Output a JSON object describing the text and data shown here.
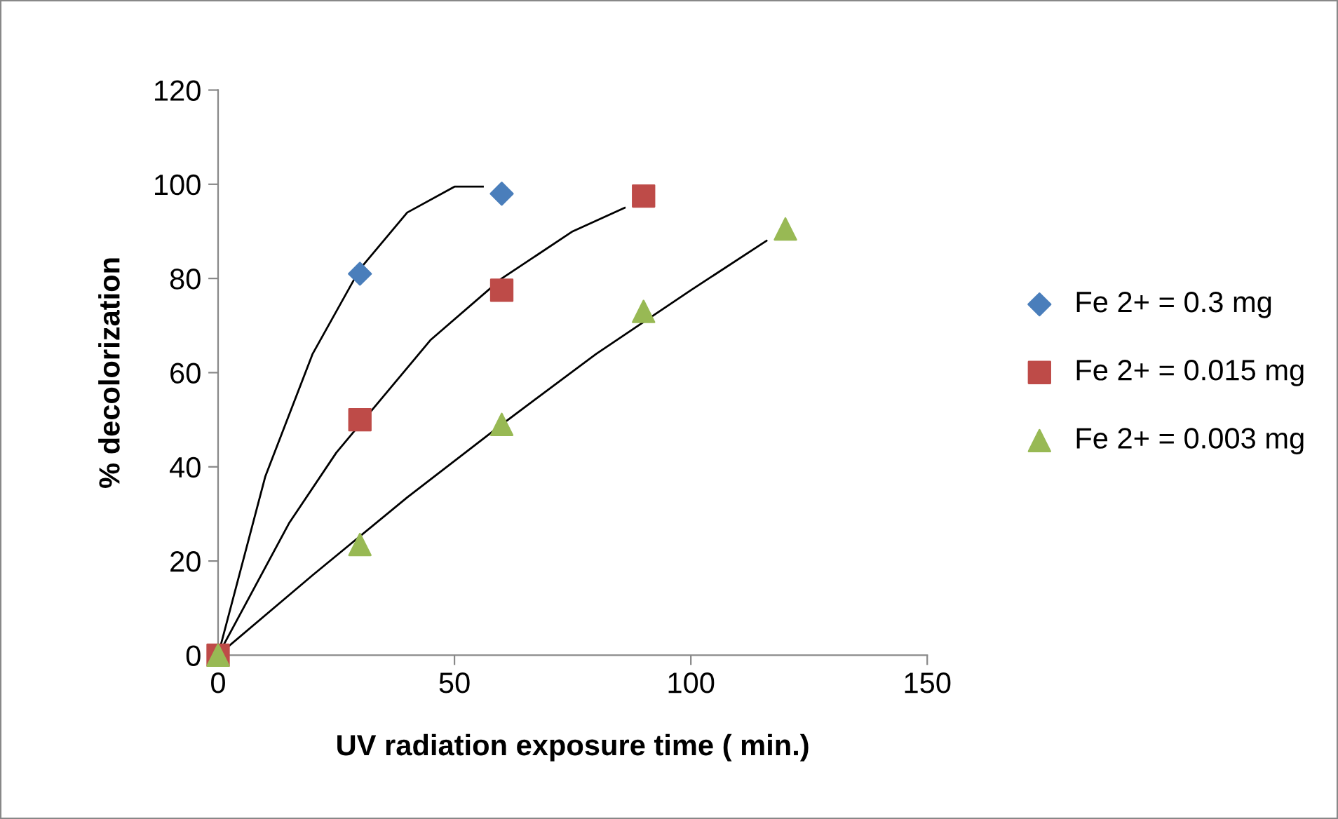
{
  "chart_data": {
    "type": "scatter",
    "xlabel": "UV radiation exposure time ( min.)",
    "ylabel": "% decolorization",
    "xlim": [
      0,
      150
    ],
    "xticks": [
      0,
      50,
      100,
      150
    ],
    "ylim": [
      0,
      120
    ],
    "yticks": [
      0,
      20,
      40,
      60,
      80,
      100,
      120
    ],
    "grid": false,
    "legend": "right",
    "series": [
      {
        "type": "line",
        "color": "#000000",
        "x": [
          0,
          10,
          20,
          30,
          40,
          50,
          56
        ],
        "values": [
          0,
          38,
          64,
          82,
          94,
          99.5,
          99.5
        ]
      },
      {
        "type": "line",
        "color": "#000000",
        "x": [
          0,
          15,
          25,
          45,
          60,
          75,
          86
        ],
        "values": [
          0,
          28,
          43,
          67,
          80,
          90,
          95
        ]
      },
      {
        "type": "line",
        "color": "#000000",
        "x": [
          0,
          20,
          40,
          60,
          80,
          100,
          116
        ],
        "values": [
          0,
          17,
          33.5,
          49,
          64,
          77.5,
          88
        ]
      },
      {
        "name": "Fe 2+ = 0.3 mg",
        "marker": "diamond",
        "color": "#4a7ebb",
        "x": [
          30,
          60
        ],
        "values": [
          81,
          98
        ]
      },
      {
        "name": "Fe 2+ = 0.015 mg",
        "marker": "square",
        "color": "#be4b48",
        "x": [
          0,
          30,
          60,
          90
        ],
        "values": [
          0,
          50,
          77.5,
          97.5
        ]
      },
      {
        "name": "Fe 2+ = 0.003 mg",
        "marker": "triangle",
        "color": "#98b954",
        "x": [
          0,
          30,
          60,
          90,
          120
        ],
        "values": [
          0,
          23.5,
          49,
          73,
          90.5
        ]
      }
    ]
  }
}
